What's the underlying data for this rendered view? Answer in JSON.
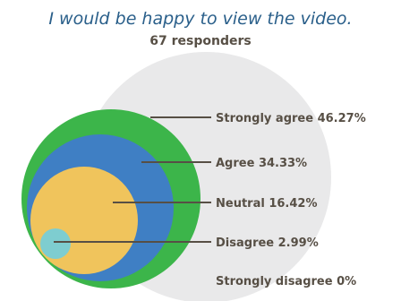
{
  "chart_data": {
    "type": "nested-circle",
    "title": "I would be happy to view the video.",
    "subtitle": "67 responders",
    "colors": {
      "background_circle": "#e9e9ea",
      "Strongly agree": "#3cb54a",
      "Agree": "#3f7fc4",
      "Neutral": "#f0c45c",
      "Disagree": "#7ecdd0",
      "leader_line": "#574f45"
    },
    "series": [
      {
        "category": "Strongly agree",
        "value": 46.27,
        "label": "Strongly agree 46.27%"
      },
      {
        "category": "Agree",
        "value": 34.33,
        "label": "Agree 34.33%"
      },
      {
        "category": "Neutral",
        "value": 16.42,
        "label": "Neutral 16.42%"
      },
      {
        "category": "Disagree",
        "value": 2.99,
        "label": "Disagree 2.99%"
      },
      {
        "category": "Strongly disagree",
        "value": 0,
        "label": "Strongly disagree 0%"
      }
    ]
  }
}
